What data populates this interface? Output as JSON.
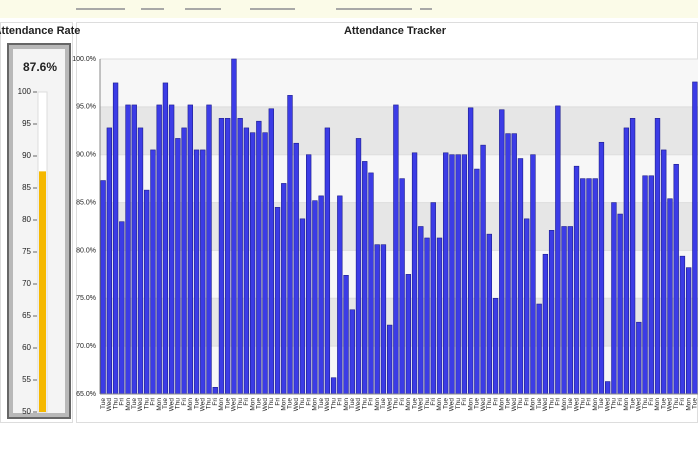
{
  "chart_data": [
    {
      "type": "gauge",
      "title": "Attendance Rate",
      "values": [
        87.6
      ],
      "value_labels": [
        "87.6%"
      ],
      "ylim": [
        50,
        100
      ],
      "yticks": [
        50,
        55,
        60,
        65,
        70,
        75,
        80,
        85,
        90,
        95,
        100
      ],
      "color": "#f5b800"
    },
    {
      "type": "bar",
      "title": "Attendance Tracker",
      "categories": [
        "Tue",
        "Wed",
        "Thu",
        "Fri",
        "Mon",
        "Tue",
        "Wed",
        "Thu",
        "Fri",
        "Mon",
        "Tue",
        "Wed",
        "Thu",
        "Fri",
        "Mon",
        "Tue",
        "Wed",
        "Thu",
        "Fri",
        "Mon",
        "Tue",
        "Wed",
        "Thu",
        "Fri",
        "Mon",
        "Tue",
        "Wed",
        "Thu",
        "Fri",
        "Mon",
        "Tue",
        "Wed",
        "Thu",
        "Fri",
        "Mon",
        "Tue",
        "Wed",
        "Thu",
        "Fri",
        "Mon",
        "Tue",
        "Wed",
        "Thu",
        "Fri",
        "Mon",
        "Tue",
        "Wed",
        "Thu",
        "Fri",
        "Mon",
        "Tue",
        "Wed",
        "Thu",
        "Fri",
        "Mon",
        "Tue",
        "Wed",
        "Thu",
        "Fri",
        "Mon",
        "Tue",
        "Wed",
        "Thu",
        "Fri",
        "Mon",
        "Tue",
        "Wed",
        "Thu",
        "Fri",
        "Mon",
        "Tue",
        "Wed",
        "Thu",
        "Fri",
        "Mon",
        "Tue",
        "Wed",
        "Thu",
        "Fri",
        "Mon",
        "Tue",
        "Wed",
        "Thu",
        "Fri",
        "Mon",
        "Tue",
        "Wed",
        "Thu",
        "Fri",
        "Mon",
        "Tue",
        "Wed",
        "Thu",
        "Fri",
        "Mon",
        "Tue"
      ],
      "values": [
        87.3,
        92.8,
        97.5,
        83.0,
        95.2,
        95.2,
        92.8,
        86.3,
        90.5,
        95.2,
        97.5,
        95.2,
        91.7,
        92.8,
        95.2,
        90.5,
        90.5,
        95.2,
        65.7,
        93.8,
        93.8,
        100,
        93.8,
        92.8,
        92.3,
        93.5,
        92.3,
        94.8,
        84.5,
        87.0,
        96.2,
        91.2,
        83.3,
        90.0,
        85.2,
        85.7,
        92.8,
        66.7,
        85.7,
        77.4,
        73.8,
        91.7,
        89.3,
        88.1,
        80.6,
        80.6,
        72.2,
        95.2,
        87.5,
        77.5,
        90.2,
        82.5,
        81.3,
        85.0,
        81.3,
        90.2,
        90.0,
        90.0,
        90.0,
        94.9,
        88.5,
        91.0,
        81.7,
        75.0,
        94.7,
        92.2,
        92.2,
        89.6,
        83.3,
        90.0,
        74.4,
        79.6,
        82.1,
        95.1,
        82.5,
        82.5,
        88.8,
        87.5,
        87.5,
        87.5,
        91.3,
        66.3,
        85.0,
        83.8,
        92.8,
        93.8,
        72.5,
        87.8,
        87.8,
        93.8,
        90.5,
        85.4,
        89.0,
        79.4,
        78.2,
        97.6
      ],
      "ylim": [
        65,
        100
      ],
      "yticks": [
        {
          "value": 65,
          "label": "65.0%"
        },
        {
          "value": 70,
          "label": "70.0%"
        },
        {
          "value": 75,
          "label": "75.0%"
        },
        {
          "value": 80,
          "label": "80.0%"
        },
        {
          "value": 85,
          "label": "85.0%"
        },
        {
          "value": 90,
          "label": "90.0%"
        },
        {
          "value": 95,
          "label": "95.0%"
        },
        {
          "value": 100,
          "label": "100.0%"
        }
      ],
      "color": "#3c3ce6",
      "grid": true
    }
  ]
}
